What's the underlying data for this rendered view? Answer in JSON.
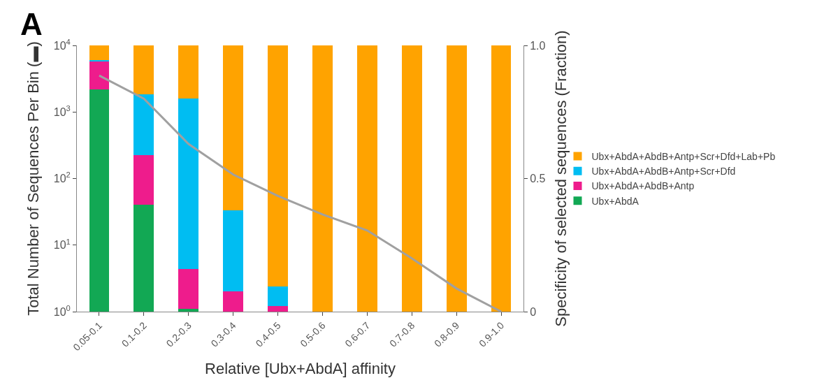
{
  "chart_data": {
    "type": "bar",
    "stacked": true,
    "xlabel": "Relative [Ubx+AbdA] affinity",
    "ylabel": "Total Number of Sequences Per Bin (▬)",
    "y2label": "Specificity of selected sequences (Fraction)",
    "categories": [
      "0.05-0.1",
      "0.1-0.2",
      "0.2-0.3",
      "0.3-0.4",
      "0.4-0.5",
      "0.5-0.6",
      "0.6-0.7",
      "0.7-0.8",
      "0.8-0.9",
      "0.9-1.0"
    ],
    "log": "y",
    "ylim": [
      1,
      10000
    ],
    "yticks": [
      {
        "value": 1,
        "label": "10$^{0}$"
      },
      {
        "value": 10,
        "label": "10$^{1}$"
      },
      {
        "value": 100,
        "label": "10$^{2}$"
      },
      {
        "value": 1000,
        "label": "10$^{3}$"
      },
      {
        "value": 10000,
        "label": "10$^{4}$"
      }
    ],
    "y2lim": [
      0,
      1
    ],
    "y2ticks": [
      0,
      0.5,
      {
        "value": 1,
        "label": "1.0"
      }
    ],
    "legend": "right",
    "annotations": [
      "A"
    ],
    "series": [
      {
        "name": "Ubx+AbdA",
        "color": "#12a854",
        "values": [
          2180,
          40,
          1.1,
          null,
          null,
          null,
          null,
          null,
          null,
          null
        ]
      },
      {
        "name": "Ubx+AbdA+AbdB+Antp",
        "color": "#ee1c8c",
        "values": [
          3500,
          185,
          3.3,
          2,
          1.2,
          null,
          null,
          null,
          null,
          null
        ]
      },
      {
        "name": "Ubx+AbdA+AbdB+Antp+Scr+Dfd",
        "color": "#00bdf2",
        "values": [
          300,
          1600,
          1600,
          31,
          1.2,
          null,
          null,
          null,
          null,
          null
        ]
      },
      {
        "name": "Ubx+AbdA+AbdB+Antp+Scr+Dfd+Lab+Pb",
        "color": "#ffa300",
        "values": [
          4000,
          8200,
          8400,
          9967,
          9998,
          10000,
          10000,
          10000,
          10000,
          10000
        ]
      },
      {
        "type": "line",
        "axis": "y2",
        "color": "#a0a0a0",
        "marker": "none",
        "values": [
          0.887,
          0.8,
          0.63,
          0.515,
          0.435,
          0.365,
          0.305,
          0.2,
          0.087,
          0
        ]
      }
    ]
  }
}
